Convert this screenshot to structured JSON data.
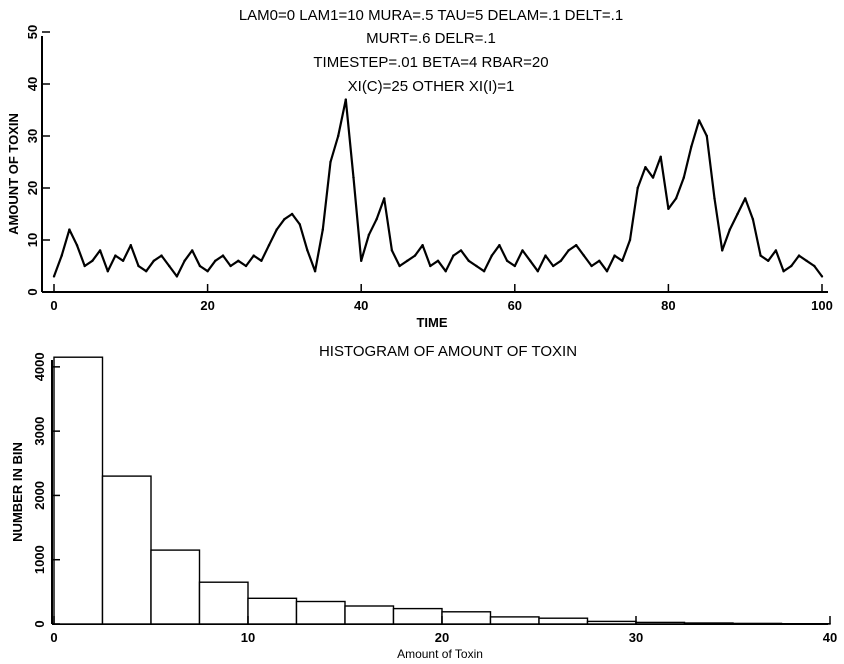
{
  "chart_data": [
    {
      "type": "line",
      "title_lines": [
        "LAM0=0 LAM1=10 MURA=.5 TAU=5 DELAM=.1 DELT=.1",
        "MURT=.6 DELR=.1",
        "TIMESTEP=.01 BETA=4 RBAR=20",
        "XI(C)=25 OTHER XI(I)=1"
      ],
      "xlabel": "TIME",
      "ylabel": "AMOUNT OF TOXIN",
      "xlim": [
        0,
        100
      ],
      "ylim": [
        0,
        50
      ],
      "xticks": [
        "0",
        "20",
        "40",
        "60",
        "80",
        "100"
      ],
      "yticks": [
        "0",
        "10",
        "20",
        "30",
        "40",
        "50"
      ],
      "grid": false,
      "series": [
        {
          "x": [
            0,
            1,
            2,
            3,
            4,
            5,
            6,
            7,
            8,
            9,
            10,
            11,
            12,
            13,
            14,
            15,
            16,
            17,
            18,
            19,
            20,
            21,
            22,
            23,
            24,
            25,
            26,
            27,
            28,
            29,
            30,
            31,
            32,
            33,
            34,
            35,
            36,
            37,
            38,
            39,
            40,
            41,
            42,
            43,
            44,
            45,
            46,
            47,
            48,
            49,
            50,
            51,
            52,
            53,
            54,
            55,
            56,
            57,
            58,
            59,
            60,
            61,
            62,
            63,
            64,
            65,
            66,
            67,
            68,
            69,
            70,
            71,
            72,
            73,
            74,
            75,
            76,
            77,
            78,
            79,
            80,
            81,
            82,
            83,
            84,
            85,
            86,
            87,
            88,
            89,
            90,
            91,
            92,
            93,
            94,
            95,
            96,
            97,
            98,
            99,
            100
          ],
          "y": [
            3,
            7,
            12,
            9,
            5,
            6,
            8,
            4,
            7,
            6,
            9,
            5,
            4,
            6,
            7,
            5,
            3,
            6,
            8,
            5,
            4,
            6,
            7,
            5,
            6,
            5,
            7,
            6,
            9,
            12,
            14,
            15,
            13,
            8,
            4,
            12,
            25,
            30,
            37,
            22,
            6,
            11,
            14,
            18,
            8,
            5,
            6,
            7,
            9,
            5,
            6,
            4,
            7,
            8,
            6,
            5,
            4,
            7,
            9,
            6,
            5,
            8,
            6,
            4,
            7,
            5,
            6,
            8,
            9,
            7,
            5,
            6,
            4,
            7,
            6,
            10,
            20,
            24,
            22,
            26,
            16,
            18,
            22,
            28,
            33,
            30,
            18,
            8,
            12,
            15,
            18,
            14,
            7,
            6,
            8,
            4,
            5,
            7,
            6,
            5,
            3
          ]
        }
      ]
    },
    {
      "type": "bar",
      "title": "HISTOGRAM OF AMOUNT OF TOXIN",
      "xlabel": "Amount of Toxin",
      "ylabel": "NUMBER IN BIN",
      "xlim": [
        0,
        40
      ],
      "ylim": [
        0,
        4200
      ],
      "xticks": [
        "0",
        "10",
        "20",
        "30",
        "40"
      ],
      "yticks": [
        "0",
        "1000",
        "2000",
        "3000",
        "4000"
      ],
      "grid": false,
      "bin_width": 2.5,
      "bin_starts": [
        0,
        2.5,
        5,
        7.5,
        10,
        12.5,
        15,
        17.5,
        20,
        22.5,
        25,
        27.5,
        30,
        32.5,
        35,
        37.5
      ],
      "values": [
        4150,
        2300,
        1150,
        650,
        400,
        350,
        280,
        240,
        190,
        110,
        90,
        40,
        25,
        15,
        10,
        5
      ]
    }
  ]
}
